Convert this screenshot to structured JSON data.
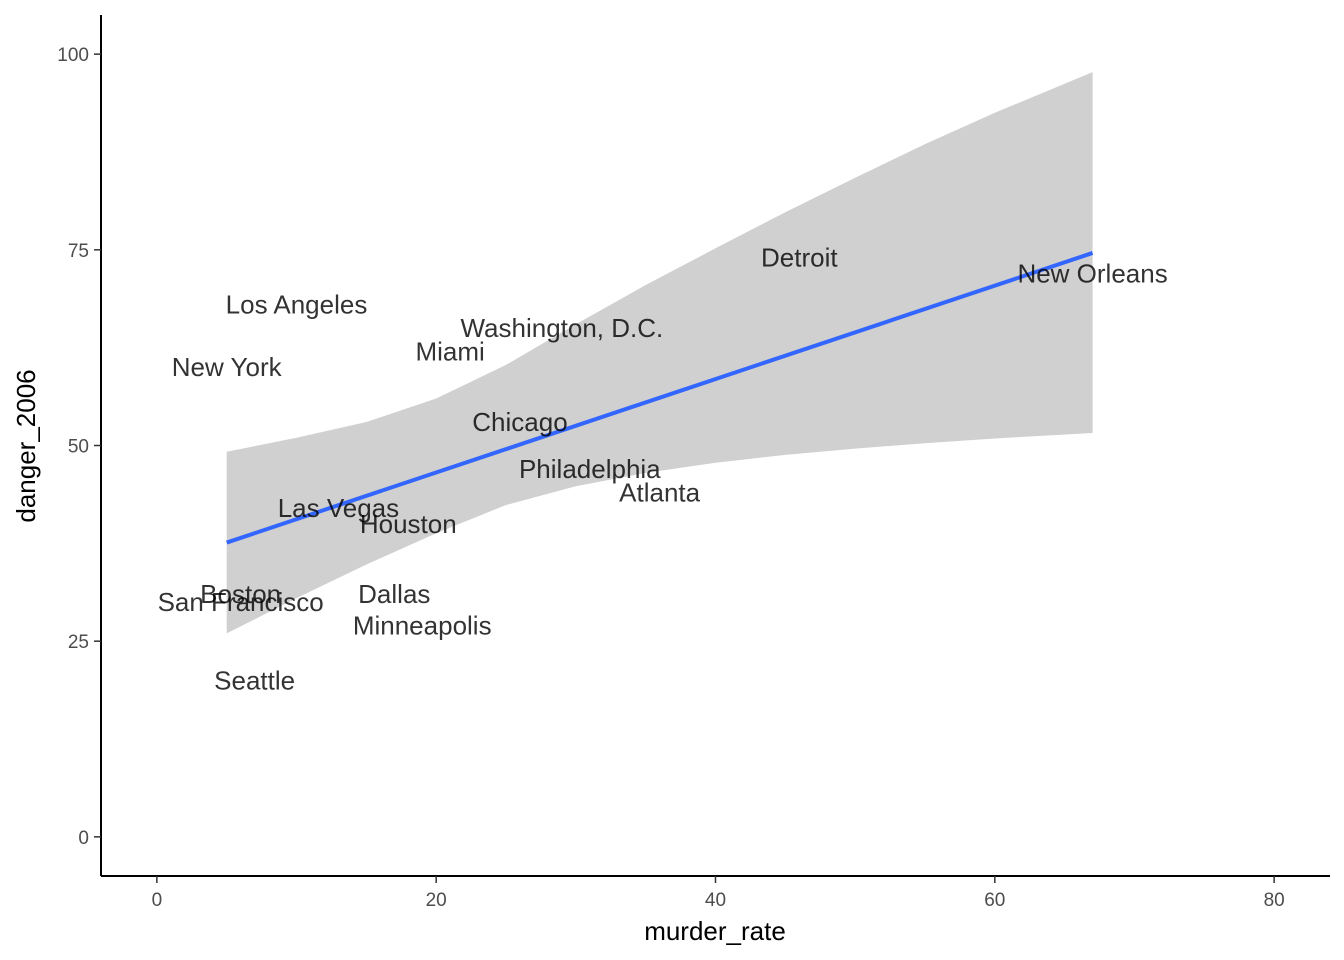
{
  "chart_data": {
    "type": "scatter",
    "title": "",
    "xlabel": "murder_rate",
    "ylabel": "danger_2006",
    "xlim": [
      -4,
      84
    ],
    "ylim": [
      -5,
      105
    ],
    "xticks": [
      0,
      20,
      40,
      60,
      80
    ],
    "yticks": [
      0,
      25,
      50,
      75,
      100
    ],
    "grid": false,
    "points": [
      {
        "label": "New Orleans",
        "x": 67,
        "y": 72
      },
      {
        "label": "Detroit",
        "x": 46,
        "y": 74
      },
      {
        "label": "Los Angeles",
        "x": 10,
        "y": 68
      },
      {
        "label": "Washington, D.C.",
        "x": 29,
        "y": 65
      },
      {
        "label": "Miami",
        "x": 21,
        "y": 62
      },
      {
        "label": "New York",
        "x": 5,
        "y": 60
      },
      {
        "label": "Chicago",
        "x": 26,
        "y": 53
      },
      {
        "label": "Philadelphia",
        "x": 31,
        "y": 47
      },
      {
        "label": "Atlanta",
        "x": 36,
        "y": 44
      },
      {
        "label": "Las Vegas",
        "x": 13,
        "y": 42
      },
      {
        "label": "Houston",
        "x": 18,
        "y": 40
      },
      {
        "label": "Boston",
        "x": 6,
        "y": 31
      },
      {
        "label": "Dallas",
        "x": 17,
        "y": 31
      },
      {
        "label": "San Francisco",
        "x": 6,
        "y": 30
      },
      {
        "label": "Minneapolis",
        "x": 19,
        "y": 27
      },
      {
        "label": "Seattle",
        "x": 7,
        "y": 20
      }
    ],
    "trend_line": {
      "color": "#3366FF",
      "x": [
        5,
        67
      ],
      "y": [
        37.6,
        74.6
      ]
    },
    "confidence_band": {
      "color": "#D0D0D0",
      "x": [
        5,
        10,
        15,
        20,
        25,
        30,
        35,
        40,
        45,
        50,
        55,
        60,
        67
      ],
      "upper": [
        49.2,
        51.0,
        53.0,
        56.0,
        60.3,
        65.5,
        70.5,
        75.2,
        79.8,
        84.2,
        88.5,
        92.5,
        97.7
      ],
      "lower": [
        26.0,
        30.5,
        34.8,
        38.8,
        42.4,
        44.8,
        46.5,
        47.8,
        48.8,
        49.6,
        50.3,
        50.9,
        51.6
      ]
    }
  }
}
